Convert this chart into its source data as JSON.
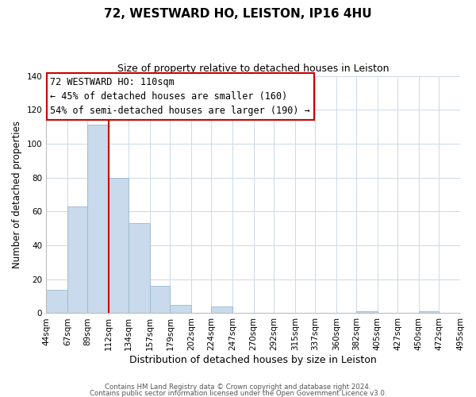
{
  "title": "72, WESTWARD HO, LEISTON, IP16 4HU",
  "subtitle": "Size of property relative to detached houses in Leiston",
  "xlabel": "Distribution of detached houses by size in Leiston",
  "ylabel": "Number of detached properties",
  "bar_color": "#c8daeb",
  "bar_edge_color": "#9ab8d0",
  "vline_x": 112,
  "vline_color": "#cc0000",
  "annotation_lines": [
    "72 WESTWARD HO: 110sqm",
    "← 45% of detached houses are smaller (160)",
    "54% of semi-detached houses are larger (190) →"
  ],
  "bin_edges": [
    44,
    67,
    89,
    112,
    134,
    157,
    179,
    202,
    224,
    247,
    270,
    292,
    315,
    337,
    360,
    382,
    405,
    427,
    450,
    472,
    495
  ],
  "counts": [
    14,
    63,
    111,
    80,
    53,
    16,
    5,
    0,
    4,
    0,
    0,
    0,
    0,
    0,
    0,
    1,
    0,
    0,
    1,
    0
  ],
  "ylim": [
    0,
    140
  ],
  "yticks": [
    0,
    20,
    40,
    60,
    80,
    100,
    120,
    140
  ],
  "footnote1": "Contains HM Land Registry data © Crown copyright and database right 2024.",
  "footnote2": "Contains public sector information licensed under the Open Government Licence v3.0."
}
